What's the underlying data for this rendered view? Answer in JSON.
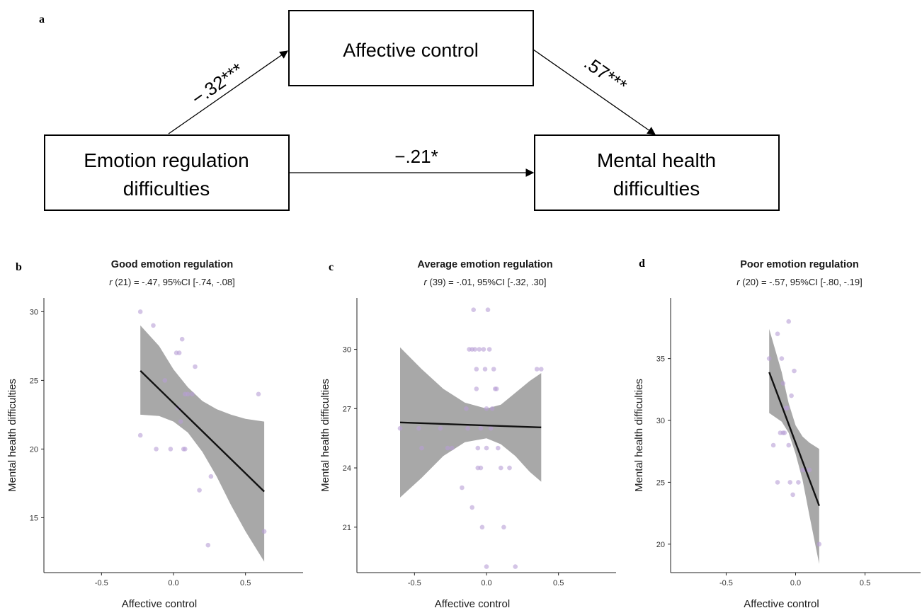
{
  "figure": {
    "panel_a_label": "a",
    "boxes": {
      "affective_control": "Affective control",
      "emotion_line1": "Emotion regulation",
      "emotion_line2": "difficulties",
      "mental_line1": "Mental health",
      "mental_line2": "difficulties"
    },
    "paths": {
      "a_path": "−.32***",
      "b_path": ".57***",
      "c_path": "−.21*"
    }
  },
  "chart_data": [
    {
      "type": "scatter",
      "panel_label": "b",
      "title": "Good emotion regulation",
      "stat_r": "r",
      "stat_rest": " (21) = -.47, 95%CI [-.74, -.08]",
      "xlabel": "Affective control",
      "ylabel": "Mental health difficulties",
      "xlim": [
        -0.9,
        0.9
      ],
      "ylim": [
        11,
        31
      ],
      "xticks": [
        -0.5,
        0.0,
        0.5
      ],
      "xtick_labels": [
        "-0.5",
        "0.0",
        "0.5"
      ],
      "yticks": [
        15,
        20,
        25,
        30
      ],
      "ytick_labels": [
        "15",
        "20",
        "25",
        "30"
      ],
      "points": [
        [
          -0.23,
          30
        ],
        [
          -0.14,
          29
        ],
        [
          -0.23,
          21
        ],
        [
          -0.12,
          20
        ],
        [
          -0.06,
          25
        ],
        [
          -0.02,
          20
        ],
        [
          0.02,
          27
        ],
        [
          0.04,
          27
        ],
        [
          0.05,
          22
        ],
        [
          0.06,
          28
        ],
        [
          0.03,
          23
        ],
        [
          0.07,
          20
        ],
        [
          0.08,
          20
        ],
        [
          0.08,
          24
        ],
        [
          0.1,
          24
        ],
        [
          0.13,
          24
        ],
        [
          0.15,
          26
        ],
        [
          0.18,
          17
        ],
        [
          0.24,
          13
        ],
        [
          0.26,
          18
        ],
        [
          0.59,
          24
        ],
        [
          0.63,
          14
        ]
      ],
      "fit": {
        "x": [
          -0.23,
          0.63
        ],
        "y": [
          25.7,
          16.9
        ]
      },
      "band": {
        "x": [
          -0.23,
          -0.1,
          0.0,
          0.1,
          0.2,
          0.3,
          0.4,
          0.5,
          0.63
        ],
        "lower": [
          22.5,
          22.4,
          22.0,
          21.2,
          19.8,
          18.0,
          15.9,
          14.0,
          11.8
        ],
        "upper": [
          29.0,
          27.5,
          25.8,
          24.5,
          23.5,
          22.9,
          22.5,
          22.2,
          22.0
        ]
      }
    },
    {
      "type": "scatter",
      "panel_label": "c",
      "title": "Average emotion regulation",
      "stat_r": "r",
      "stat_rest": " (39) = -.01, 95%CI [-.32, .30]",
      "xlabel": "Affective control",
      "ylabel": "Mental health difficulties",
      "xlim": [
        -0.9,
        0.9
      ],
      "ylim": [
        18.7,
        32.6
      ],
      "xticks": [
        -0.5,
        0.0,
        0.5
      ],
      "xtick_labels": [
        "-0.5",
        "0.0",
        "0.5"
      ],
      "yticks": [
        21,
        24,
        27,
        30
      ],
      "ytick_labels": [
        "21",
        "24",
        "27",
        "30"
      ],
      "points": [
        [
          -0.6,
          26
        ],
        [
          -0.47,
          26
        ],
        [
          -0.45,
          25
        ],
        [
          -0.32,
          26
        ],
        [
          -0.27,
          25
        ],
        [
          -0.24,
          25
        ],
        [
          -0.17,
          23
        ],
        [
          -0.14,
          27
        ],
        [
          -0.13,
          26
        ],
        [
          -0.12,
          30
        ],
        [
          -0.1,
          30
        ],
        [
          -0.1,
          22
        ],
        [
          -0.09,
          32
        ],
        [
          -0.08,
          30
        ],
        [
          -0.07,
          29
        ],
        [
          -0.07,
          28
        ],
        [
          -0.06,
          25
        ],
        [
          -0.06,
          24
        ],
        [
          -0.05,
          30
        ],
        [
          -0.04,
          26
        ],
        [
          -0.04,
          24
        ],
        [
          -0.03,
          21
        ],
        [
          -0.02,
          30
        ],
        [
          -0.01,
          29
        ],
        [
          0.0,
          27
        ],
        [
          0.0,
          25
        ],
        [
          0.0,
          19
        ],
        [
          0.01,
          32
        ],
        [
          0.02,
          30
        ],
        [
          0.03,
          26
        ],
        [
          0.04,
          27
        ],
        [
          0.05,
          29
        ],
        [
          0.06,
          28
        ],
        [
          0.07,
          28
        ],
        [
          0.08,
          25
        ],
        [
          0.1,
          24
        ],
        [
          0.12,
          21
        ],
        [
          0.16,
          24
        ],
        [
          0.2,
          19
        ],
        [
          0.35,
          29
        ],
        [
          0.38,
          29
        ]
      ],
      "fit": {
        "x": [
          -0.6,
          0.38
        ],
        "y": [
          26.3,
          26.05
        ]
      },
      "band": {
        "x": [
          -0.6,
          -0.45,
          -0.3,
          -0.15,
          0.0,
          0.1,
          0.2,
          0.3,
          0.38
        ],
        "lower": [
          22.5,
          23.5,
          24.6,
          25.3,
          25.5,
          25.2,
          24.6,
          23.8,
          23.3
        ],
        "upper": [
          30.1,
          29.0,
          28.0,
          27.3,
          27.0,
          27.2,
          27.8,
          28.4,
          28.8
        ]
      }
    },
    {
      "type": "scatter",
      "panel_label": "d",
      "title": "Poor emotion regulation",
      "stat_r": "r",
      "stat_rest": " (20) = -.57, 95%CI [-.80, -.19]",
      "xlabel": "Affective control",
      "ylabel": "Mental health difficulties",
      "xlim": [
        -0.9,
        0.9
      ],
      "ylim": [
        17.7,
        39.9
      ],
      "xticks": [
        -0.5,
        0.0,
        0.5
      ],
      "xtick_labels": [
        "-0.5",
        "0.0",
        "0.5"
      ],
      "yticks": [
        20,
        25,
        30,
        35
      ],
      "ytick_labels": [
        "20",
        "25",
        "30",
        "35"
      ],
      "points": [
        [
          -0.19,
          35
        ],
        [
          -0.16,
          28
        ],
        [
          -0.13,
          37
        ],
        [
          -0.13,
          25
        ],
        [
          -0.11,
          29
        ],
        [
          -0.1,
          35
        ],
        [
          -0.09,
          33
        ],
        [
          -0.09,
          29
        ],
        [
          -0.08,
          29
        ],
        [
          -0.07,
          31
        ],
        [
          -0.06,
          31
        ],
        [
          -0.05,
          28
        ],
        [
          -0.05,
          38
        ],
        [
          -0.04,
          25
        ],
        [
          -0.03,
          32
        ],
        [
          -0.02,
          24
        ],
        [
          -0.01,
          34
        ],
        [
          0.02,
          25
        ],
        [
          0.05,
          26
        ],
        [
          0.07,
          26
        ],
        [
          0.1,
          26
        ],
        [
          0.17,
          20
        ]
      ],
      "fit": {
        "x": [
          -0.19,
          0.17
        ],
        "y": [
          33.9,
          23.1
        ]
      },
      "band": {
        "x": [
          -0.19,
          -0.1,
          -0.05,
          0.0,
          0.05,
          0.1,
          0.17
        ],
        "lower": [
          30.6,
          29.9,
          29.0,
          27.3,
          25.2,
          22.3,
          18.4
        ],
        "upper": [
          37.4,
          33.9,
          31.4,
          29.6,
          28.7,
          28.2,
          27.7
        ]
      }
    }
  ]
}
